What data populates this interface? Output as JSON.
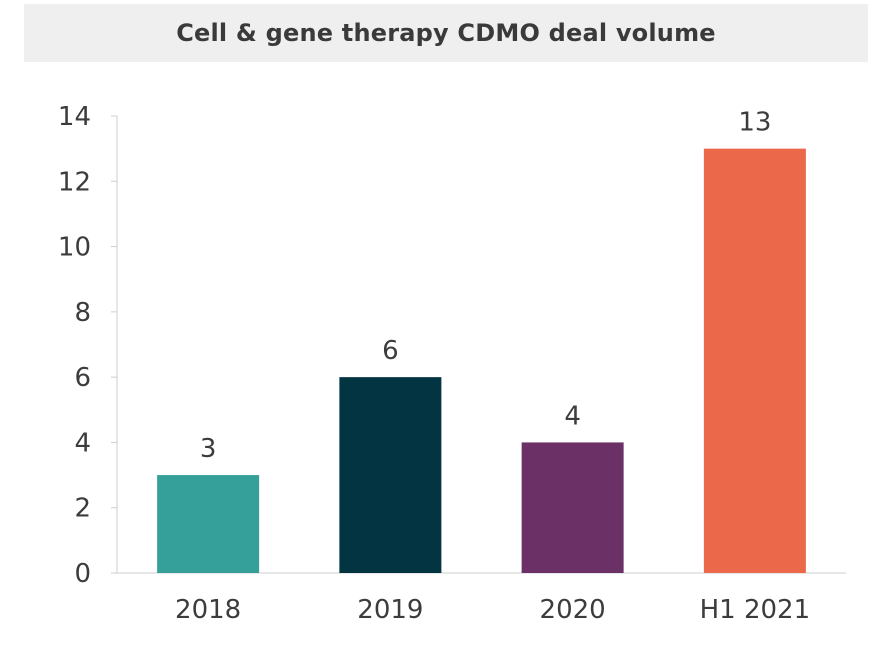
{
  "chart_data": {
    "type": "bar",
    "title": "Cell & gene therapy CDMO deal volume",
    "categories": [
      "2018",
      "2019",
      "2020",
      "H1 2021"
    ],
    "values": [
      3,
      6,
      4,
      13
    ],
    "colors": [
      "#35a09a",
      "#033442",
      "#6b3065",
      "#ec684a"
    ],
    "data_labels": [
      "3",
      "6",
      "4",
      "13"
    ],
    "xlabel": "",
    "ylabel": "",
    "ylim": [
      0,
      14
    ],
    "yticks": [
      0,
      2,
      4,
      6,
      8,
      10,
      12,
      14
    ],
    "grid": false,
    "legend": "none"
  }
}
